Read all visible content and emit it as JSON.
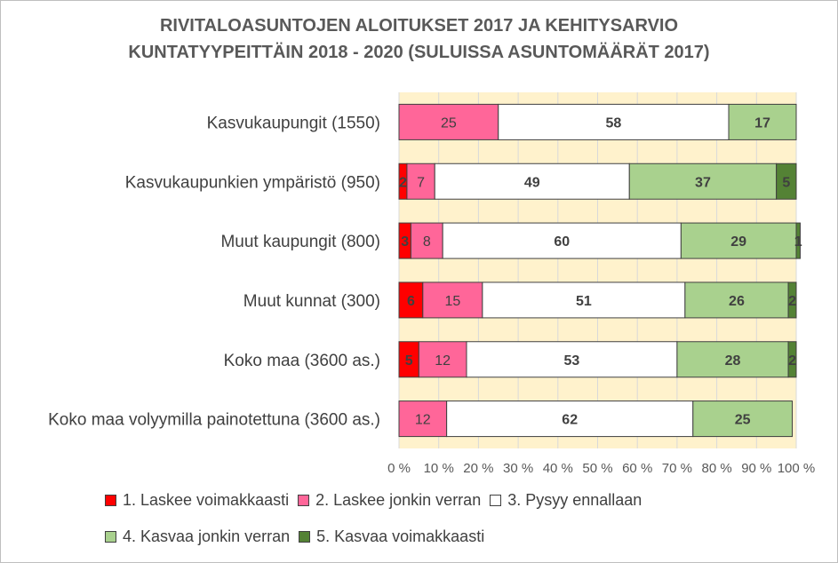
{
  "chart_data": {
    "type": "bar",
    "orientation": "horizontal",
    "stacked": "percent",
    "title_lines": [
      "RIVITALOASUNTOJEN ALOITUKSET 2017 JA KEHITYSARVIO",
      "KUNTATYYPEITTÄIN 2018 - 2020 (SULUISSA ASUNTOMÄÄRÄT 2017)"
    ],
    "categories": [
      "Kasvukaupungit (1550)",
      "Kasvukaupunkien ympäristö (950)",
      "Muut kaupungit (800)",
      "Muut kunnat (300)",
      "Koko maa (3600 as.)",
      "Koko maa volyymilla painotettuna (3600 as.)"
    ],
    "series": [
      {
        "name": "1. Laskee voimakkaasti",
        "color": "#ff0000",
        "label_color": "#404040",
        "values": [
          0,
          2,
          3,
          6,
          5,
          0
        ]
      },
      {
        "name": "2. Laskee jonkin verran",
        "color": "#ff6699",
        "label_color": "#404040",
        "values": [
          25,
          7,
          8,
          15,
          12,
          12
        ]
      },
      {
        "name": "3. Pysyy ennallaan",
        "color": "#ffffff",
        "label_color": "#404040",
        "values": [
          58,
          49,
          60,
          51,
          53,
          62
        ]
      },
      {
        "name": "4. Kasvaa jonkin verran",
        "color": "#a9d18e",
        "label_color": "#404040",
        "values": [
          17,
          37,
          29,
          26,
          28,
          25
        ]
      },
      {
        "name": "5. Kasvaa voimakkaasti",
        "color": "#548235",
        "label_color": "#404040",
        "values": [
          0,
          5,
          1,
          2,
          2,
          0
        ]
      }
    ],
    "xlim": [
      0,
      100
    ],
    "x_ticks": [
      0,
      10,
      20,
      30,
      40,
      50,
      60,
      70,
      80,
      90,
      100
    ],
    "x_tick_labels": [
      "0 %",
      "10 %",
      "20 %",
      "30 %",
      "40 %",
      "50 %",
      "60 %",
      "70 %",
      "80 %",
      "90 %",
      "100 %"
    ],
    "plot_background": "#fff2cc",
    "grid": true,
    "legend_position": "bottom"
  }
}
